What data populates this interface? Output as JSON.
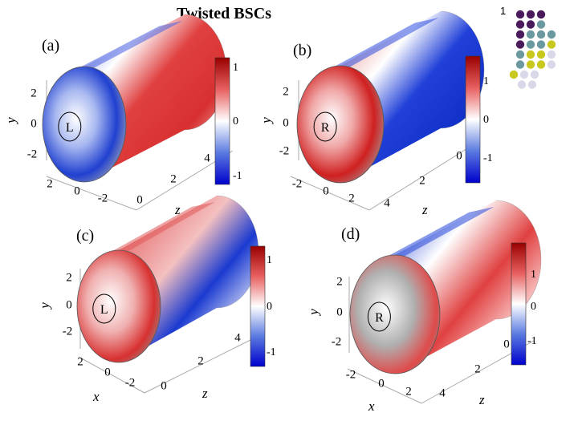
{
  "title": "Twisted BSCs",
  "page_number": "1",
  "panels": [
    {
      "label": "(a)",
      "handedness": "L",
      "y_axis_label": "y",
      "z_axis_label": "z",
      "x_axis_label": "",
      "y_ticks": [
        "2",
        "0",
        "-2"
      ],
      "x_ticks": [
        "2",
        "0",
        "-2"
      ],
      "z_ticks": [
        "0",
        "2",
        "4"
      ],
      "colorbar_ticks": [
        "1",
        "0",
        "-1"
      ],
      "colorbar_range": [
        -1.1,
        1.1
      ]
    },
    {
      "label": "(b)",
      "handedness": "R",
      "y_axis_label": "y",
      "z_axis_label": "z",
      "x_axis_label": "",
      "y_ticks": [
        "2",
        "0",
        "-2"
      ],
      "x_ticks": [
        "-2",
        "0",
        "2"
      ],
      "z_ticks": [
        "0",
        "2",
        "4"
      ],
      "colorbar_ticks": [
        "1",
        "0",
        "-1"
      ],
      "colorbar_range": [
        -1.6,
        1.6
      ]
    },
    {
      "label": "(c)",
      "handedness": "L",
      "y_axis_label": "y",
      "z_axis_label": "z",
      "x_axis_label": "x",
      "y_ticks": [
        "2",
        "0",
        "-2"
      ],
      "x_ticks": [
        "2",
        "0",
        "-2"
      ],
      "z_ticks": [
        "0",
        "2",
        "4"
      ],
      "colorbar_ticks": [
        "1",
        "0",
        "-1"
      ],
      "colorbar_range": [
        -1.5,
        1.5
      ]
    },
    {
      "label": "(d)",
      "handedness": "R",
      "y_axis_label": "y",
      "z_axis_label": "z",
      "x_axis_label": "x",
      "y_ticks": [
        "2",
        "0",
        "-2"
      ],
      "x_ticks": [
        "-2",
        "0",
        "2"
      ],
      "z_ticks": [
        "0",
        "2",
        "4"
      ],
      "colorbar_ticks": [
        "1",
        "0",
        "-1"
      ],
      "colorbar_range": [
        -1.8,
        1.8
      ]
    }
  ],
  "colors": {
    "colormap": [
      "#0000cc",
      "#5a7ae0",
      "#ffffff",
      "#e86060",
      "#990000"
    ],
    "dots": [
      "#4a1a5c",
      "#6a9aa0",
      "#c8c81e",
      "#d8d8e8"
    ]
  }
}
